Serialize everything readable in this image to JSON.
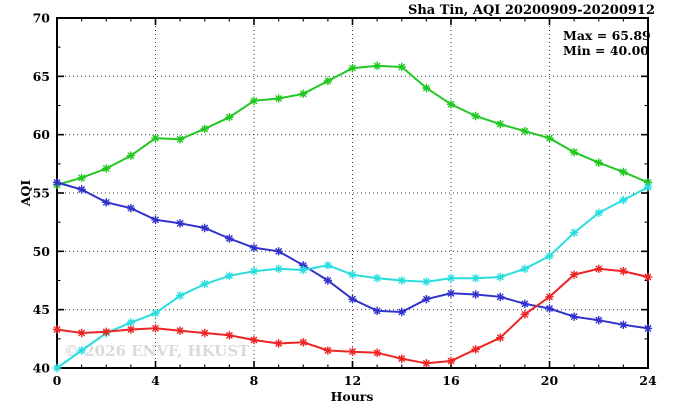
{
  "window": {
    "title": "Sha Tin, AQI 20200909-20200912"
  },
  "annotations": {
    "max_label": "Max = 65.89",
    "min_label": "Min = 40.00"
  },
  "watermark": "© 2026 ENVF, HKUST",
  "axes": {
    "xlabel": "Hours",
    "ylabel": "AQI"
  },
  "colors": {
    "green_series": "#22c822",
    "blue_series": "#3232cd",
    "cyan_series": "#29dede",
    "red_series": "#ee2525",
    "grid": "#444444",
    "frame": "#000000",
    "watermark": "#dadada"
  },
  "chart_data": {
    "type": "line",
    "title": "Sha Tin, AQI 20200909-20200912",
    "xlabel": "Hours",
    "ylabel": "AQI",
    "xlim": [
      0,
      24
    ],
    "ylim": [
      40,
      70
    ],
    "xticks_major": [
      0,
      4,
      8,
      12,
      16,
      20,
      24
    ],
    "xtick_minor_step": 1,
    "yticks_major": [
      40,
      45,
      50,
      55,
      60,
      65,
      70
    ],
    "ytick_minor_step": 2.5,
    "grid": "dotted lines at interior major ticks",
    "legend_position": "none",
    "marker": "asterisk-star",
    "max_annotation": 65.89,
    "min_annotation": 40.0,
    "x": [
      0,
      1,
      2,
      3,
      4,
      5,
      6,
      7,
      8,
      9,
      10,
      11,
      12,
      13,
      14,
      15,
      16,
      17,
      18,
      19,
      20,
      21,
      22,
      23,
      24
    ],
    "series": [
      {
        "name": "green-series",
        "color": "#22c822",
        "values": [
          55.7,
          56.3,
          57.1,
          58.2,
          59.7,
          59.6,
          60.5,
          61.5,
          62.9,
          63.1,
          63.5,
          64.6,
          65.7,
          65.9,
          65.8,
          64.0,
          62.6,
          61.6,
          60.9,
          60.3,
          59.7,
          58.5,
          57.6,
          56.8,
          55.9
        ]
      },
      {
        "name": "blue-series",
        "color": "#3232cd",
        "values": [
          55.9,
          55.3,
          54.2,
          53.7,
          52.7,
          52.4,
          52.0,
          51.1,
          50.3,
          50.0,
          48.8,
          47.5,
          45.9,
          44.9,
          44.8,
          45.9,
          46.4,
          46.3,
          46.1,
          45.5,
          45.1,
          44.4,
          44.1,
          43.7,
          43.4
        ]
      },
      {
        "name": "cyan-series",
        "color": "#29dede",
        "values": [
          40.0,
          41.5,
          43.0,
          43.9,
          44.7,
          46.2,
          47.2,
          47.9,
          48.3,
          48.5,
          48.4,
          48.8,
          48.0,
          47.7,
          47.5,
          47.4,
          47.7,
          47.7,
          47.8,
          48.5,
          49.6,
          51.6,
          53.3,
          54.4,
          55.5
        ]
      },
      {
        "name": "red-series",
        "color": "#ee2525",
        "values": [
          43.3,
          43.0,
          43.1,
          43.3,
          43.4,
          43.2,
          43.0,
          42.8,
          42.4,
          42.1,
          42.2,
          41.5,
          41.4,
          41.3,
          40.8,
          40.4,
          40.6,
          41.6,
          42.6,
          44.6,
          46.1,
          48.0,
          48.5,
          48.3,
          47.8
        ]
      }
    ]
  }
}
